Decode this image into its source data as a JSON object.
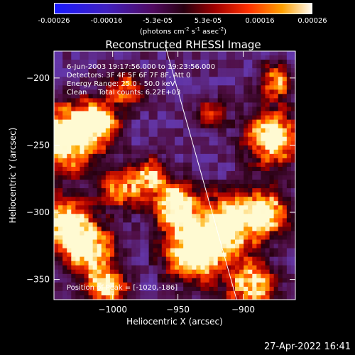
{
  "colorbar": {
    "ticks": [
      "-0.00026",
      "-0.00016",
      "-5.3e-05",
      "5.3e-05",
      "0.00016",
      "0.00026"
    ],
    "units_main": "(photons cm",
    "units_exp1": "-2",
    "units_mid1": " s",
    "units_exp2": "-1",
    "units_mid2": " asec",
    "units_exp3": "-2",
    "units_end": ")"
  },
  "chart_data": {
    "type": "heatmap",
    "title": "Reconstructed RHESSI Image",
    "xlabel": "Heliocentric X (arcsec)",
    "ylabel": "Heliocentric Y (arcsec)",
    "xlim": [
      -1045,
      -860
    ],
    "ylim": [
      -365,
      -180
    ],
    "x_ticks": [
      -1000,
      -950,
      -900
    ],
    "x_tick_labels": [
      "−1000",
      "−950",
      "−900"
    ],
    "y_ticks": [
      -200,
      -250,
      -300,
      -350
    ],
    "y_tick_labels": [
      "−200",
      "−250",
      "−300",
      "−350"
    ],
    "colorbar_range": [
      -0.00026,
      0.00026
    ],
    "annotations": [
      "6-Jun-2003 19:17:56.000 to 19:23:56.000",
      "Detectors: 3F 4F 5F 6F 7F 8F, Att 0",
      "Energy Range: 25.0 - 50.0 keV",
      "Clean     Total counts: 6.22E+03"
    ],
    "peak_label": "Position of Peak = [-1020,-186]",
    "limb_line": [
      [
        -960,
        -175
      ],
      [
        -905,
        -365
      ]
    ]
  },
  "timestamp": "27-Apr-2022 16:41"
}
